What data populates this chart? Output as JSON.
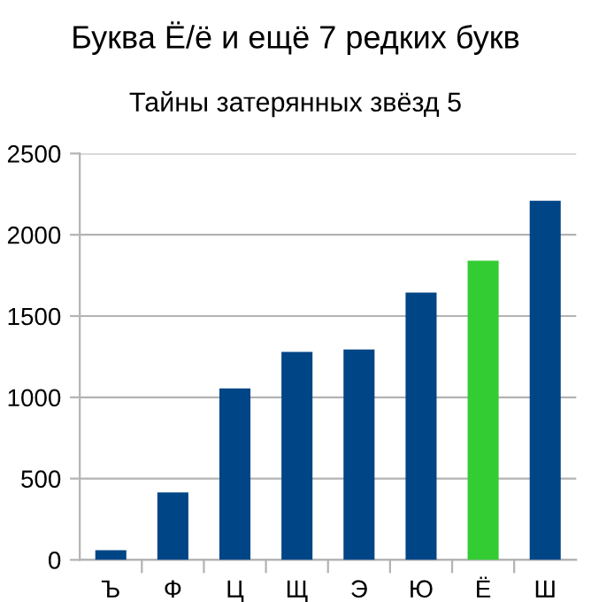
{
  "chart_data": {
    "type": "bar",
    "title": "Буква Ё/ё и ещё 7 редких букв",
    "subtitle": "Тайны затерянных звёзд 5",
    "categories": [
      "Ъ",
      "Ф",
      "Ц",
      "Щ",
      "Э",
      "Ю",
      "Ё",
      "Ш"
    ],
    "values": [
      60,
      415,
      1055,
      1280,
      1295,
      1645,
      1840,
      2210
    ],
    "colors": [
      "#004586",
      "#004586",
      "#004586",
      "#004586",
      "#004586",
      "#004586",
      "#33cc33",
      "#004586"
    ],
    "ylim": [
      0,
      2500
    ],
    "yticks": [
      0,
      500,
      1000,
      1500,
      2000,
      2500
    ],
    "grid": "y",
    "legend": false
  }
}
